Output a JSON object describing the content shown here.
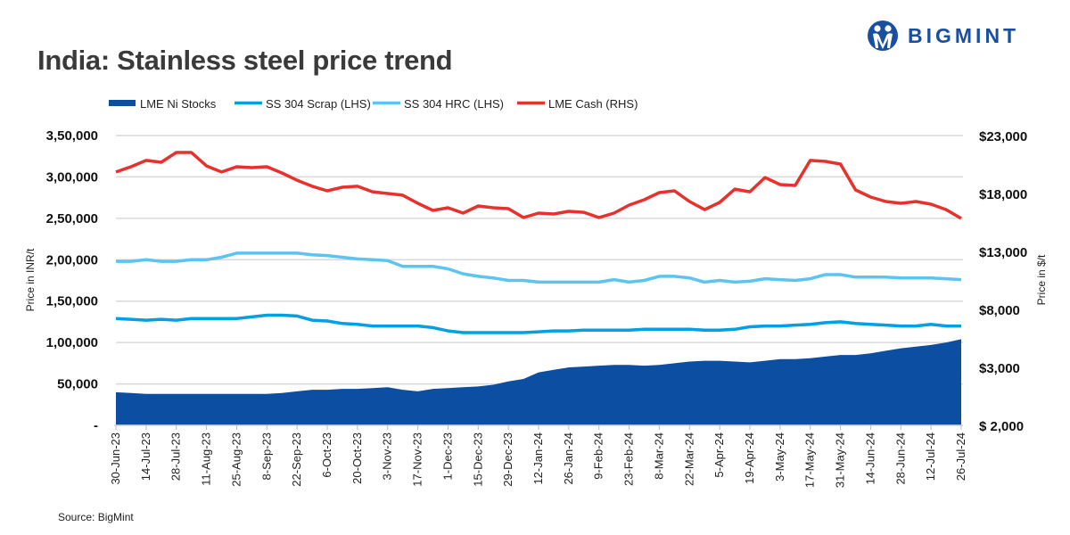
{
  "title": "India: Stainless steel price trend",
  "source": "Source: BigMint",
  "logo": {
    "text": "BIGMINT",
    "color": "#1a4fa0"
  },
  "chart_data": {
    "type": "line",
    "title": "India: Stainless steel price trend",
    "ylabel": "Price in INR/t",
    "y2label": "Price in $/t",
    "ylim": [
      0,
      350000
    ],
    "y2lim": [
      -2000,
      23000
    ],
    "yticks": [
      "-",
      "50,000",
      "1,00,000",
      "1,50,000",
      "2,00,000",
      "2,50,000",
      "3,00,000",
      "3,50,000"
    ],
    "y2ticks": [
      "$ 2,000",
      "$3,000",
      "$8,000",
      "$13,000",
      "$18,000",
      "$23,000"
    ],
    "grid": true,
    "legend_position": "top",
    "x": [
      "30-Jun-23",
      "7-Jul-23",
      "14-Jul-23",
      "21-Jul-23",
      "28-Jul-23",
      "4-Aug-23",
      "11-Aug-23",
      "18-Aug-23",
      "25-Aug-23",
      "1-Sep-23",
      "8-Sep-23",
      "15-Sep-23",
      "22-Sep-23",
      "29-Sep-23",
      "6-Oct-23",
      "13-Oct-23",
      "20-Oct-23",
      "27-Oct-23",
      "3-Nov-23",
      "10-Nov-23",
      "17-Nov-23",
      "24-Nov-23",
      "1-Dec-23",
      "8-Dec-23",
      "15-Dec-23",
      "22-Dec-23",
      "29-Dec-23",
      "5-Jan-24",
      "12-Jan-24",
      "19-Jan-24",
      "26-Jan-24",
      "2-Feb-24",
      "9-Feb-24",
      "16-Feb-24",
      "23-Feb-24",
      "1-Mar-24",
      "8-Mar-24",
      "15-Mar-24",
      "22-Mar-24",
      "29-Mar-24",
      "5-Apr-24",
      "12-Apr-24",
      "19-Apr-24",
      "26-Apr-24",
      "3-May-24",
      "10-May-24",
      "17-May-24",
      "24-May-24",
      "31-May-24",
      "7-Jun-24",
      "14-Jun-24",
      "21-Jun-24",
      "28-Jun-24",
      "5-Jul-24",
      "12-Jul-24",
      "19-Jul-24",
      "26-Jul-24"
    ],
    "xtick_labels": [
      "30-Jun-23",
      "14-Jul-23",
      "28-Jul-23",
      "11-Aug-23",
      "25-Aug-23",
      "8-Sep-23",
      "22-Sep-23",
      "6-Oct-23",
      "20-Oct-23",
      "3-Nov-23",
      "17-Nov-23",
      "1-Dec-23",
      "15-Dec-23",
      "29-Dec-23",
      "12-Jan-24",
      "26-Jan-24",
      "9-Feb-24",
      "23-Feb-24",
      "8-Mar-24",
      "22-Mar-24",
      "5-Apr-24",
      "19-Apr-24",
      "3-May-24",
      "17-May-24",
      "31-May-24",
      "14-Jun-24",
      "28-Jun-24",
      "12-Jul-24",
      "26-Jul-24"
    ],
    "series": [
      {
        "name": "LME Ni Stocks",
        "kind": "area",
        "axis": "left",
        "color": "#0b4ea2",
        "values": [
          40000,
          39000,
          38000,
          38000,
          38000,
          38000,
          38000,
          38000,
          38000,
          38000,
          38000,
          39000,
          41000,
          43000,
          43000,
          44000,
          44000,
          45000,
          46000,
          43000,
          41000,
          44000,
          45000,
          46000,
          47000,
          49000,
          53000,
          56000,
          64000,
          67000,
          70000,
          71000,
          72000,
          73000,
          73000,
          72000,
          73000,
          75000,
          77000,
          78000,
          78000,
          77000,
          76000,
          78000,
          80000,
          80000,
          81000,
          83000,
          85000,
          85000,
          87000,
          90000,
          93000,
          95000,
          97000,
          100000,
          104000
        ]
      },
      {
        "name": "SS 304 Scrap (LHS)",
        "kind": "line",
        "axis": "left",
        "color": "#00a0e3",
        "values": [
          129000,
          128000,
          127000,
          128000,
          127000,
          129000,
          129000,
          129000,
          129000,
          131000,
          133000,
          133000,
          132000,
          127000,
          126000,
          123000,
          122000,
          120000,
          120000,
          120000,
          120000,
          118000,
          114000,
          112000,
          112000,
          112000,
          112000,
          112000,
          113000,
          114000,
          114000,
          115000,
          115000,
          115000,
          115000,
          116000,
          116000,
          116000,
          116000,
          115000,
          115000,
          116000,
          119000,
          120000,
          120000,
          121000,
          122000,
          124000,
          125000,
          123000,
          122000,
          121000,
          120000,
          120000,
          122000,
          120000,
          120000
        ]
      },
      {
        "name": "SS 304 HRC (LHS)",
        "kind": "line",
        "axis": "left",
        "color": "#5bc4f1",
        "values": [
          198000,
          198000,
          200000,
          198000,
          198000,
          200000,
          200000,
          203000,
          208000,
          208000,
          208000,
          208000,
          208000,
          206000,
          205000,
          203000,
          201000,
          200000,
          199000,
          192000,
          192000,
          192000,
          189000,
          183000,
          180000,
          178000,
          175000,
          175000,
          173000,
          173000,
          173000,
          173000,
          173000,
          176000,
          173000,
          175000,
          180000,
          180000,
          178000,
          173000,
          175000,
          173000,
          174000,
          177000,
          176000,
          175000,
          177000,
          182000,
          182000,
          179000,
          179000,
          179000,
          178000,
          178000,
          178000,
          177000,
          176000
        ]
      },
      {
        "name": "LME Cash (RHS)",
        "kind": "line",
        "axis": "right",
        "color": "#e8312d",
        "values": [
          19850,
          20310,
          20850,
          20690,
          21540,
          21540,
          20380,
          19850,
          20310,
          20230,
          20310,
          19770,
          19150,
          18620,
          18230,
          18540,
          18620,
          18150,
          18000,
          17850,
          17150,
          16540,
          16770,
          16310,
          16920,
          16770,
          16690,
          15920,
          16310,
          16230,
          16460,
          16380,
          15920,
          16310,
          17000,
          17460,
          18080,
          18230,
          17310,
          16610,
          17230,
          18380,
          18150,
          19380,
          18770,
          18690,
          20850,
          20770,
          20540,
          18310,
          17690,
          17310,
          17150,
          17310,
          17080,
          16610,
          15850
        ]
      }
    ]
  }
}
